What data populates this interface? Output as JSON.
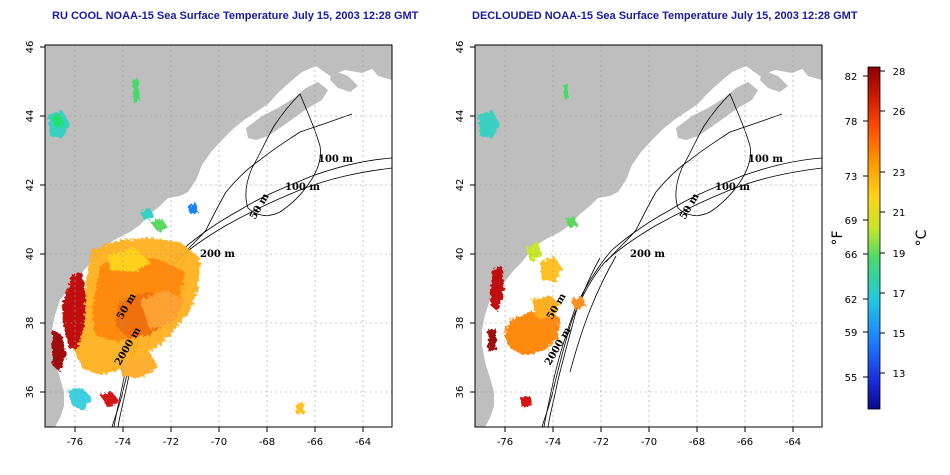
{
  "titles": {
    "left": "RU COOL NOAA-15 Sea Surface Temperature July 15, 2003 12:28 GMT",
    "right": "DECLOUDED NOAA-15 Sea Surface Temperature July 15, 2003 12:28 GMT"
  },
  "map": {
    "lon_ticks": [
      "-76",
      "-74",
      "-72",
      "-70",
      "-68",
      "-66",
      "-64"
    ],
    "lat_ticks": [
      "46",
      "44",
      "42",
      "40",
      "38",
      "36"
    ],
    "lon_range": [
      -77,
      -63
    ],
    "lat_range": [
      35,
      46
    ],
    "land_color": "#bebebe",
    "ocean_color": "#ffffff",
    "grid": "dotted",
    "contour_labels": [
      "100 m",
      "100 m",
      "50 m",
      "200 m",
      "50 m",
      "2000 m"
    ]
  },
  "colorbar": {
    "fahrenheit_ticks": [
      "82",
      "78",
      "73",
      "69",
      "66",
      "62",
      "59",
      "55"
    ],
    "celsius_ticks": [
      "28",
      "26",
      "23",
      "21",
      "19",
      "17",
      "15",
      "13"
    ],
    "fahrenheit_label": "°F",
    "celsius_label": "°C",
    "colors": [
      "#8b0000",
      "#d42000",
      "#ff5000",
      "#ff9a00",
      "#ffd21a",
      "#c8e62a",
      "#4ad96a",
      "#22c8e0",
      "#1e7fff",
      "#1a2ad8",
      "#0a0a8c"
    ]
  }
}
